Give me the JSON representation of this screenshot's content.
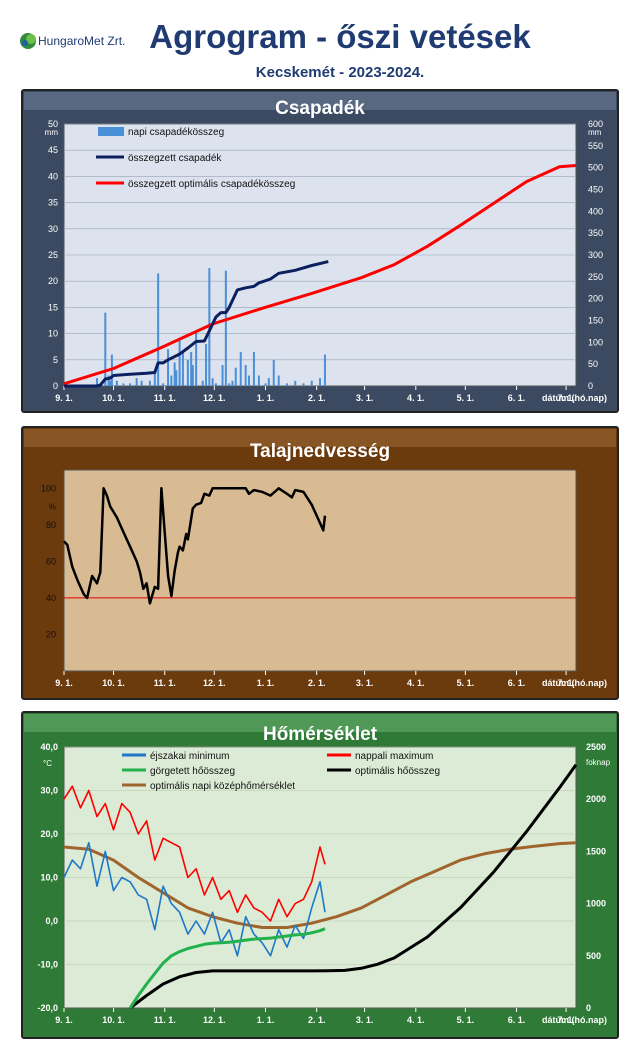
{
  "header": {
    "logo_text": "HungaroMet Zrt.",
    "title": "Agrogram - őszi vetések",
    "subtitle": "Kecskemét - 2023-2024."
  },
  "x_axis": {
    "ticks": [
      "9. 1.",
      "10. 1.",
      "11. 1.",
      "12. 1.",
      "1. 1.",
      "2. 1.",
      "3. 1.",
      "4. 1.",
      "5. 1.",
      "6. 1.",
      "7. 1."
    ],
    "label": "dátum (hó.nap)"
  },
  "chart_data": [
    {
      "type": "bar+line",
      "title": "Csapadék",
      "y_left": {
        "unit": "mm",
        "range": [
          0,
          50
        ],
        "ticks": [
          0,
          5,
          10,
          15,
          20,
          25,
          30,
          35,
          40,
          45,
          50
        ]
      },
      "y_right": {
        "unit": "mm",
        "range": [
          0,
          600
        ],
        "ticks": [
          0,
          50,
          100,
          150,
          200,
          250,
          300,
          350,
          400,
          450,
          500,
          550,
          600
        ]
      },
      "x_unit": "days since Sep 1",
      "series": [
        {
          "name": "napi csapadékösszeg",
          "kind": "bar",
          "axis": "left",
          "color": "#4a90d9",
          "x": [
            20,
            22,
            25,
            27,
            28,
            29,
            32,
            36,
            40,
            44,
            47,
            52,
            55,
            57,
            60,
            63,
            65,
            67,
            68,
            70,
            72,
            75,
            77,
            78,
            80,
            84,
            86,
            88,
            90,
            92,
            96,
            98,
            100,
            102,
            104,
            107,
            110,
            112,
            115,
            118,
            122,
            124,
            127,
            130,
            135,
            140,
            145,
            150,
            155,
            158
          ],
          "values": [
            1.5,
            0.5,
            14,
            2,
            1,
            6,
            1,
            0.5,
            0.5,
            1.5,
            1,
            1,
            2.5,
            21.5,
            0.5,
            7,
            2,
            4.5,
            3,
            9,
            6.5,
            5,
            6.5,
            4,
            10.5,
            1,
            8,
            22.5,
            1.5,
            0.5,
            4,
            22,
            0.5,
            1,
            3.5,
            6.5,
            4,
            2,
            6.5,
            2,
            0.5,
            1.5,
            5,
            2,
            0.5,
            1,
            0.5,
            1,
            1.5,
            6
          ]
        },
        {
          "name": "összegzett csapadék",
          "kind": "line",
          "axis": "right",
          "color": "#0c1f5e",
          "x": [
            0,
            20,
            22,
            25,
            28,
            30,
            40,
            50,
            55,
            57,
            60,
            63,
            70,
            75,
            80,
            85,
            88,
            92,
            95,
            98,
            100,
            105,
            110,
            115,
            118,
            125,
            130,
            140,
            150,
            160
          ],
          "values": [
            0,
            0,
            2,
            16,
            18,
            24,
            27,
            29,
            31,
            53,
            53,
            60,
            73,
            87,
            102,
            103,
            126,
            158,
            168,
            168,
            180,
            220,
            225,
            228,
            236,
            245,
            258,
            265,
            276,
            285
          ]
        },
        {
          "name": "összegzett optimális csapadékösszeg",
          "kind": "line",
          "axis": "right",
          "color": "#ff0000",
          "x": [
            0,
            30,
            60,
            90,
            120,
            150,
            180,
            200,
            220,
            240,
            260,
            280,
            300,
            310
          ],
          "values": [
            5,
            40,
            90,
            142,
            178,
            212,
            248,
            278,
            320,
            368,
            418,
            468,
            502,
            505
          ]
        }
      ]
    },
    {
      "type": "line",
      "title": "Talajnedvesség",
      "y": {
        "unit": "%",
        "range": [
          0,
          110
        ],
        "ticks": [
          20,
          40,
          60,
          80,
          100
        ]
      },
      "threshold": 40,
      "x_unit": "days since Sep 1",
      "series": [
        {
          "name": "talajnedvesség",
          "color": "#000000",
          "x": [
            0,
            2,
            5,
            8,
            12,
            14,
            17,
            20,
            22,
            24,
            26,
            28,
            32,
            35,
            40,
            44,
            46,
            48,
            50,
            52,
            55,
            57,
            59,
            61,
            63,
            65,
            67,
            69,
            70,
            72,
            74,
            75,
            78,
            80,
            83,
            85,
            88,
            90,
            95,
            100,
            105,
            110,
            112,
            115,
            120,
            125,
            130,
            135,
            138,
            140,
            145,
            150,
            155,
            157,
            158
          ],
          "values": [
            71,
            69,
            57,
            50,
            42,
            40,
            52,
            48,
            54,
            100,
            96,
            90,
            84,
            78,
            68,
            60,
            54,
            45,
            48,
            37,
            46,
            45,
            100,
            76,
            52,
            41,
            55,
            65,
            68,
            66,
            75,
            72,
            89,
            91,
            92,
            97,
            96,
            100,
            100,
            100,
            100,
            100,
            97,
            99,
            98,
            96,
            100,
            97,
            95,
            99,
            98,
            91,
            81,
            77,
            85
          ]
        }
      ]
    },
    {
      "type": "line",
      "title": "Hőmérséklet",
      "y_left": {
        "unit": "°C",
        "range": [
          -20,
          40
        ],
        "ticks": [
          "-20,0",
          "-10,0",
          "0,0",
          "10,0",
          "20,0",
          "30,0",
          "40,0"
        ]
      },
      "y_right": {
        "unit": "foknap",
        "range": [
          0,
          2500
        ],
        "ticks": [
          0,
          500,
          1000,
          1500,
          2000,
          2500
        ]
      },
      "x_unit": "days since Sep 1",
      "series": [
        {
          "name": "éjszakai minimum",
          "axis": "left",
          "color": "#1e78c8",
          "x": [
            0,
            5,
            10,
            15,
            20,
            25,
            30,
            35,
            40,
            45,
            50,
            55,
            60,
            65,
            70,
            75,
            80,
            85,
            90,
            95,
            100,
            105,
            110,
            115,
            120,
            125,
            130,
            135,
            140,
            145,
            150,
            155,
            158
          ],
          "values": [
            10,
            14,
            12,
            18,
            8,
            16,
            7,
            10,
            9,
            6,
            5,
            -2,
            8,
            4,
            2,
            -3,
            0,
            -3,
            2,
            -5,
            -2,
            -8,
            1,
            -3,
            -5,
            -8,
            -2,
            -6,
            -1,
            -4,
            3,
            9,
            2
          ]
        },
        {
          "name": "nappali maximum",
          "axis": "left",
          "color": "#ff0000",
          "x": [
            0,
            5,
            10,
            15,
            20,
            25,
            30,
            35,
            40,
            45,
            50,
            55,
            60,
            65,
            70,
            75,
            80,
            85,
            90,
            95,
            100,
            105,
            110,
            115,
            120,
            125,
            130,
            135,
            140,
            145,
            150,
            155,
            158
          ],
          "values": [
            28,
            31,
            26,
            30,
            24,
            27,
            21,
            27,
            25,
            20,
            23,
            14,
            19,
            18,
            17,
            10,
            12,
            6,
            10,
            5,
            7,
            2,
            6,
            3,
            2,
            0,
            5,
            1,
            4,
            5,
            9,
            17,
            13
          ]
        },
        {
          "name": "görgetett hőösszeg",
          "axis": "right",
          "color": "#22b14c",
          "x": [
            40,
            45,
            50,
            55,
            60,
            65,
            70,
            75,
            80,
            85,
            90,
            95,
            100,
            105,
            110,
            115,
            120,
            125,
            130,
            135,
            140,
            145,
            150,
            155,
            158
          ],
          "values": [
            0,
            120,
            230,
            330,
            430,
            500,
            540,
            570,
            590,
            610,
            620,
            625,
            630,
            640,
            650,
            660,
            665,
            670,
            680,
            690,
            700,
            705,
            720,
            740,
            760
          ]
        },
        {
          "name": "optimális hőösszeg",
          "axis": "right",
          "color": "#000000",
          "x": [
            40,
            50,
            60,
            70,
            80,
            90,
            100,
            110,
            120,
            130,
            140,
            150,
            160,
            170,
            180,
            190,
            200,
            220,
            240,
            260,
            280,
            300,
            310
          ],
          "values": [
            0,
            120,
            230,
            300,
            340,
            355,
            355,
            355,
            355,
            355,
            355,
            355,
            356,
            360,
            380,
            420,
            480,
            680,
            960,
            1300,
            1690,
            2110,
            2330
          ]
        },
        {
          "name": "optimális napi középhőmérséklet",
          "axis": "left",
          "color": "#a0642d",
          "x": [
            0,
            15,
            30,
            45,
            60,
            75,
            90,
            105,
            120,
            135,
            150,
            165,
            180,
            195,
            210,
            225,
            240,
            255,
            270,
            285,
            300,
            310
          ],
          "values": [
            17,
            16.5,
            14,
            10,
            6.5,
            3,
            1,
            -0.5,
            -1.5,
            -1.5,
            -0.5,
            1,
            3,
            6,
            9,
            11.5,
            14,
            15.5,
            16.5,
            17.2,
            17.8,
            18
          ]
        }
      ]
    }
  ]
}
